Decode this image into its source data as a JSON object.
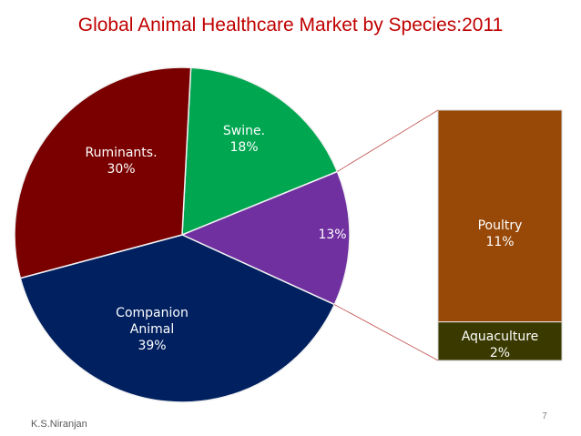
{
  "chart_data": {
    "type": "pie",
    "title": "Global Animal Healthcare Market by Species:2011",
    "slices": [
      {
        "label_lines": [
          "Swine.",
          "18%"
        ],
        "value": 18,
        "color": "#00a650"
      },
      {
        "label_lines": [
          "13%"
        ],
        "value": 13,
        "color": "#7030a0"
      },
      {
        "label_lines": [
          "Companion",
          "Animal",
          "39%"
        ],
        "value": 39,
        "color": "#002060"
      },
      {
        "label_lines": [
          "Ruminants.",
          "30%"
        ],
        "value": 30,
        "color": "#7a0000"
      }
    ],
    "breakdown": {
      "of_slice_label": "13%",
      "segments": [
        {
          "label_lines": [
            "Poultry",
            "11%"
          ],
          "value": 11,
          "color": "#984807"
        },
        {
          "label_lines": [
            "Aquaculture",
            "2%"
          ],
          "value": 2,
          "color": "#3a3a00"
        }
      ]
    }
  },
  "footer": {
    "slide_number": "7",
    "author": "K.S.Niranjan"
  }
}
